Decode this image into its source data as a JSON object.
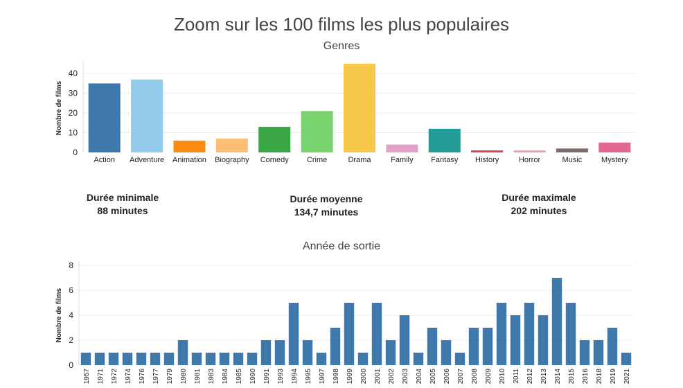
{
  "title": "Zoom sur les 100 films les plus populaires",
  "stats": {
    "min": {
      "label": "Durée minimale",
      "value": "88 minutes"
    },
    "avg": {
      "label": "Durée moyenne",
      "value": "134,7 minutes"
    },
    "max": {
      "label": "Durée maximale",
      "value": "202 minutes"
    }
  },
  "chart_data": [
    {
      "type": "bar",
      "title": "Genres",
      "ylabel": "Nombre de films",
      "xlabel": "",
      "ylim": [
        0,
        45
      ],
      "yticks": [
        0,
        10,
        20,
        30,
        40
      ],
      "grid": true,
      "categories": [
        "Action",
        "Adventure",
        "Animation",
        "Biography",
        "Comedy",
        "Crime",
        "Drama",
        "Family",
        "Fantasy",
        "History",
        "Horror",
        "Music",
        "Mystery"
      ],
      "values": [
        35,
        37,
        6,
        7,
        13,
        21,
        45,
        4,
        12,
        1,
        1,
        2,
        5
      ],
      "colors": [
        "#3e78ad",
        "#93cbec",
        "#fb8a10",
        "#fcbd74",
        "#3ba646",
        "#79d36f",
        "#f6c94b",
        "#e3a0c8",
        "#229c95",
        "#d9424a",
        "#f49da1",
        "#7d6d6a",
        "#e26890"
      ]
    },
    {
      "type": "bar",
      "title": "Année de sortie",
      "ylabel": "Nombre de films",
      "xlabel": "",
      "ylim": [
        0,
        8
      ],
      "yticks": [
        0,
        2,
        4,
        6,
        8
      ],
      "grid": true,
      "categories": [
        "1957",
        "1971",
        "1972",
        "1974",
        "1976",
        "1977",
        "1979",
        "1980",
        "1981",
        "1983",
        "1984",
        "1985",
        "1990",
        "1991",
        "1993",
        "1994",
        "1995",
        "1997",
        "1998",
        "1999",
        "2000",
        "2001",
        "2002",
        "2003",
        "2004",
        "2005",
        "2006",
        "2007",
        "2008",
        "2009",
        "2010",
        "2011",
        "2012",
        "2013",
        "2014",
        "2015",
        "2016",
        "2018",
        "2019",
        "2021"
      ],
      "values": [
        1,
        1,
        1,
        1,
        1,
        1,
        1,
        2,
        1,
        1,
        1,
        1,
        1,
        2,
        2,
        5,
        2,
        1,
        3,
        5,
        1,
        5,
        2,
        4,
        1,
        3,
        2,
        1,
        3,
        3,
        5,
        4,
        5,
        4,
        7,
        5,
        2,
        2,
        3,
        1
      ],
      "colors": [
        "#3e78ad"
      ]
    }
  ]
}
